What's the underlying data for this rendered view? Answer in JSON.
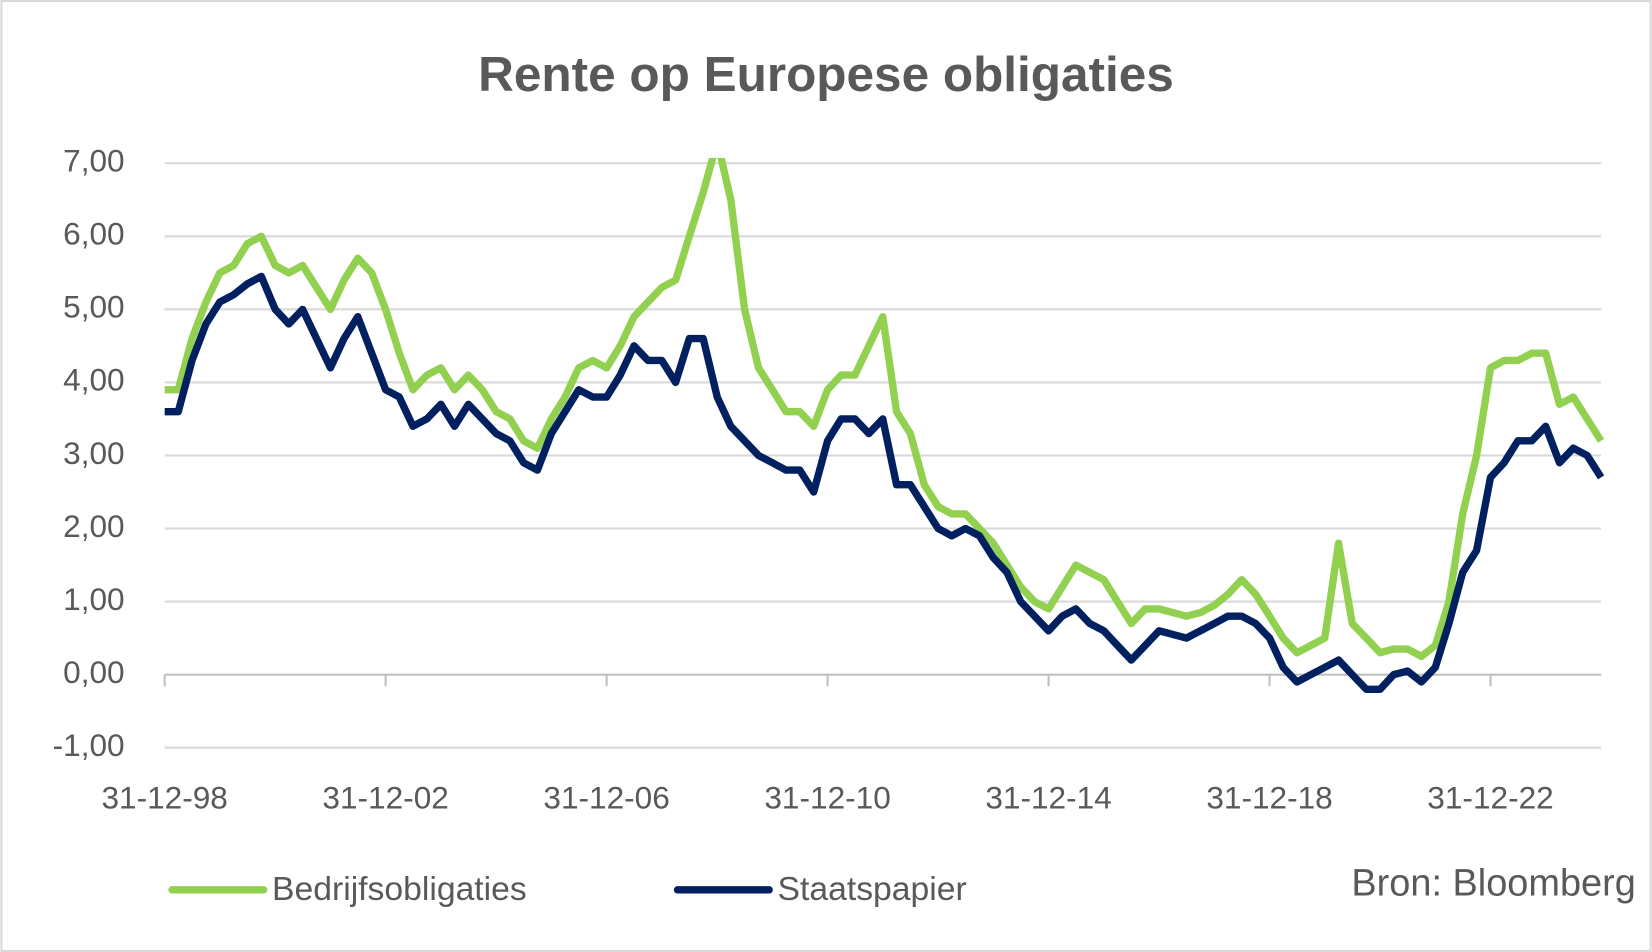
{
  "chart_data": {
    "type": "line",
    "title": "Rente op Europese obligaties",
    "source": "Bron: Bloomberg",
    "x": [
      "31-12-98",
      "31-03-99",
      "30-06-99",
      "30-09-99",
      "31-12-99",
      "31-03-00",
      "30-06-00",
      "30-09-00",
      "31-12-00",
      "31-03-01",
      "30-06-01",
      "30-09-01",
      "31-12-01",
      "31-03-02",
      "30-06-02",
      "30-09-02",
      "31-12-02",
      "31-03-03",
      "30-06-03",
      "30-09-03",
      "31-12-03",
      "31-03-04",
      "30-06-04",
      "30-09-04",
      "31-12-04",
      "31-03-05",
      "30-06-05",
      "30-09-05",
      "31-12-05",
      "31-03-06",
      "30-06-06",
      "30-09-06",
      "31-12-06",
      "31-03-07",
      "30-06-07",
      "30-09-07",
      "31-12-07",
      "31-03-08",
      "30-06-08",
      "30-09-08",
      "31-12-08",
      "31-03-09",
      "30-06-09",
      "30-09-09",
      "31-12-09",
      "31-03-10",
      "30-06-10",
      "30-09-10",
      "31-12-10",
      "31-03-11",
      "30-06-11",
      "30-09-11",
      "31-12-11",
      "31-03-12",
      "30-06-12",
      "30-09-12",
      "31-12-12",
      "31-03-13",
      "30-06-13",
      "30-09-13",
      "31-12-13",
      "31-03-14",
      "30-06-14",
      "30-09-14",
      "31-12-14",
      "31-03-15",
      "30-06-15",
      "30-09-15",
      "31-12-15",
      "31-03-16",
      "30-06-16",
      "30-09-16",
      "31-12-16",
      "31-03-17",
      "30-06-17",
      "30-09-17",
      "31-12-17",
      "31-03-18",
      "30-06-18",
      "30-09-18",
      "31-12-18",
      "31-03-19",
      "30-06-19",
      "30-09-19",
      "31-12-19",
      "31-03-20",
      "30-06-20",
      "30-09-20",
      "31-12-20",
      "31-03-21",
      "30-06-21",
      "30-09-21",
      "31-12-21",
      "31-03-22",
      "30-06-22",
      "30-09-22",
      "31-12-22",
      "31-03-23",
      "30-06-23",
      "30-09-23",
      "31-12-23",
      "31-03-24",
      "30-06-24",
      "30-09-24",
      "31-12-24"
    ],
    "series": [
      {
        "name": "Bedrijfsobligaties",
        "color": "#92d050",
        "values": [
          3.9,
          3.9,
          4.6,
          5.1,
          5.5,
          5.6,
          5.9,
          6.0,
          5.6,
          5.5,
          5.6,
          5.3,
          5.0,
          5.4,
          5.7,
          5.5,
          5.0,
          4.4,
          3.9,
          4.1,
          4.2,
          3.9,
          4.1,
          3.9,
          3.6,
          3.5,
          3.2,
          3.1,
          3.5,
          3.8,
          4.2,
          4.3,
          4.2,
          4.5,
          4.9,
          5.1,
          5.3,
          5.4,
          6.0,
          6.6,
          7.3,
          6.5,
          5.0,
          4.2,
          3.9,
          3.6,
          3.6,
          3.4,
          3.9,
          4.1,
          4.1,
          4.5,
          4.9,
          3.6,
          3.3,
          2.6,
          2.3,
          2.2,
          2.2,
          2.0,
          1.8,
          1.5,
          1.2,
          1.0,
          0.9,
          1.2,
          1.5,
          1.4,
          1.3,
          1.0,
          0.7,
          0.9,
          0.9,
          0.85,
          0.8,
          0.85,
          0.95,
          1.1,
          1.3,
          1.1,
          0.8,
          0.5,
          0.3,
          0.4,
          0.5,
          1.8,
          0.7,
          0.5,
          0.3,
          0.35,
          0.35,
          0.25,
          0.4,
          1.0,
          2.2,
          3.0,
          4.2,
          4.3,
          4.3,
          4.4,
          4.4,
          3.7,
          3.8,
          3.5,
          3.2
        ]
      },
      {
        "name": "Staatspapier",
        "color": "#002060",
        "values": [
          3.6,
          3.6,
          4.3,
          4.8,
          5.1,
          5.2,
          5.35,
          5.45,
          5.0,
          4.8,
          5.0,
          4.6,
          4.2,
          4.6,
          4.9,
          4.4,
          3.9,
          3.8,
          3.4,
          3.5,
          3.7,
          3.4,
          3.7,
          3.5,
          3.3,
          3.2,
          2.9,
          2.8,
          3.3,
          3.6,
          3.9,
          3.8,
          3.8,
          4.1,
          4.5,
          4.3,
          4.3,
          4.0,
          4.6,
          4.6,
          3.8,
          3.4,
          3.2,
          3.0,
          2.9,
          2.8,
          2.8,
          2.5,
          3.2,
          3.5,
          3.5,
          3.3,
          3.5,
          2.6,
          2.6,
          2.3,
          2.0,
          1.9,
          2.0,
          1.9,
          1.6,
          1.4,
          1.0,
          0.8,
          0.6,
          0.8,
          0.9,
          0.7,
          0.6,
          0.4,
          0.2,
          0.4,
          0.6,
          0.55,
          0.5,
          0.6,
          0.7,
          0.8,
          0.8,
          0.7,
          0.5,
          0.1,
          -0.1,
          0.0,
          0.1,
          0.2,
          0.0,
          -0.2,
          -0.2,
          0.0,
          0.05,
          -0.1,
          0.1,
          0.7,
          1.4,
          1.7,
          2.7,
          2.9,
          3.2,
          3.2,
          3.4,
          2.9,
          3.1,
          3.0,
          2.7
        ]
      }
    ],
    "xlim": [
      "31-12-98",
      "31-12-24"
    ],
    "xticks": [
      "31-12-98",
      "31-12-02",
      "31-12-06",
      "31-12-10",
      "31-12-14",
      "31-12-18",
      "31-12-22"
    ],
    "ylim": [
      -1,
      7
    ],
    "yticks": [
      {
        "value": -1,
        "label": "-1,00"
      },
      {
        "value": 0,
        "label": "0,00"
      },
      {
        "value": 1,
        "label": "1,00"
      },
      {
        "value": 2,
        "label": "2,00"
      },
      {
        "value": 3,
        "label": "3,00"
      },
      {
        "value": 4,
        "label": "4,00"
      },
      {
        "value": 5,
        "label": "5,00"
      },
      {
        "value": 6,
        "label": "6,00"
      },
      {
        "value": 7,
        "label": "7,00"
      }
    ],
    "grid": true
  }
}
